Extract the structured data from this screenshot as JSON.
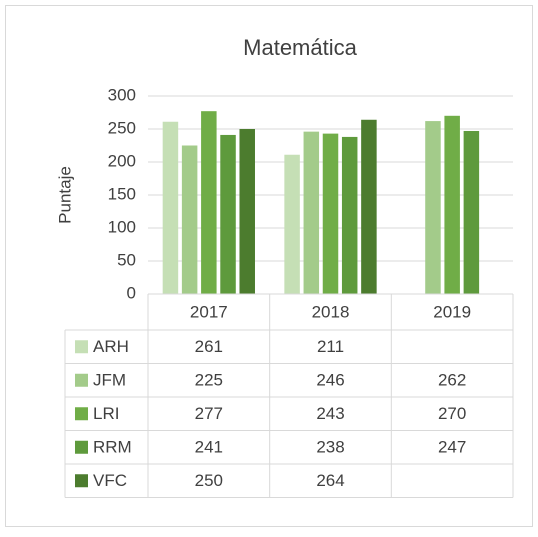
{
  "chart_data": {
    "type": "bar",
    "title": "Matemática",
    "y_label": "Puntaje",
    "categories": [
      "2017",
      "2018",
      "2019"
    ],
    "series": [
      {
        "name": "ARH",
        "color": "#c5dfb5",
        "values": [
          261,
          211,
          null
        ]
      },
      {
        "name": "JFM",
        "color": "#a3cb8a",
        "values": [
          225,
          246,
          262
        ]
      },
      {
        "name": "LRI",
        "color": "#70ad47",
        "values": [
          277,
          243,
          270
        ]
      },
      {
        "name": "RRM",
        "color": "#5e9a3c",
        "values": [
          241,
          238,
          247
        ]
      },
      {
        "name": "VFC",
        "color": "#4c7c2e",
        "values": [
          250,
          264,
          null
        ]
      }
    ],
    "ylim": [
      0,
      300
    ],
    "yticks": [
      0,
      50,
      100,
      150,
      200,
      250,
      300
    ],
    "grid": true,
    "data_table": true
  }
}
